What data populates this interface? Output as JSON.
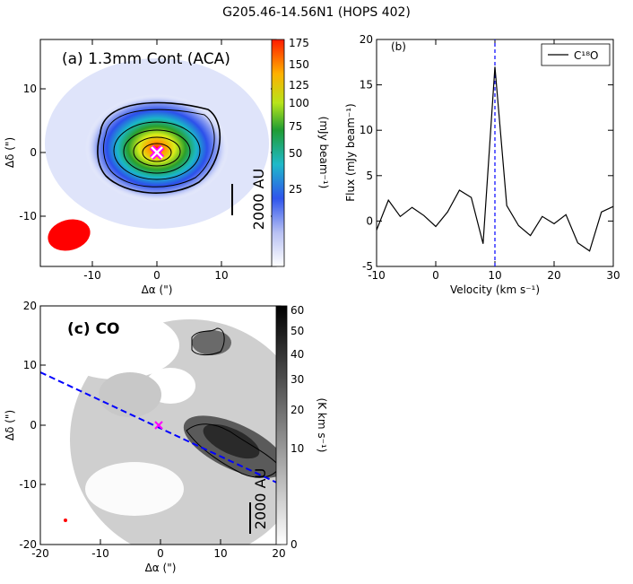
{
  "suptitle": "G205.46-14.56N1 (HOPS 402)",
  "panel_a": {
    "label": "(a) 1.3mm Cont (ACA)",
    "xlabel": "Δα (\")",
    "ylabel": "Δδ (\")",
    "cbar_label": "(mJy beam⁻¹)",
    "cbar_ticks": [
      "175",
      "150",
      "125",
      "100",
      "75",
      "50",
      "25"
    ],
    "scalebar": "2000 AU",
    "xticks": [
      "-10",
      "0",
      "10"
    ],
    "yticks": [
      "10",
      "0",
      "-10"
    ]
  },
  "panel_c": {
    "label": "(c) CO",
    "xlabel": "Δα (\")",
    "ylabel": "Δδ (\")",
    "cbar_label": "(K km s⁻¹)",
    "cbar_ticks": [
      "60",
      "50",
      "40",
      "30",
      "20",
      "10",
      "0"
    ],
    "scalebar": "2000 AU",
    "xticks": [
      "-20",
      "-10",
      "0",
      "10",
      "20"
    ],
    "yticks": [
      "20",
      "10",
      "0",
      "-10",
      "-20"
    ]
  },
  "colors": {
    "accent_blue": "#0000ff",
    "marker": "#ff00ff",
    "beam": "#ff0000"
  },
  "chart_data": {
    "type": "line",
    "title": "(b)",
    "xlabel": "Velocity  (km s⁻¹)",
    "ylabel": "Flux (mJy beam⁻¹)",
    "legend": "C¹⁸O",
    "legend_position": "top-right",
    "xlim": [
      -10,
      30
    ],
    "ylim": [
      -5,
      20
    ],
    "xticks": [
      -10,
      0,
      10,
      20,
      30
    ],
    "yticks": [
      -5,
      0,
      5,
      10,
      15,
      20
    ],
    "vline": 10,
    "series": [
      {
        "name": "C¹⁸O",
        "x": [
          -10,
          -8,
          -6,
          -4,
          -2,
          0,
          2,
          4,
          6,
          8,
          10,
          12,
          14,
          16,
          18,
          20,
          22,
          24,
          26,
          28,
          30
        ],
        "y": [
          -1,
          2.3,
          0.5,
          1.5,
          0.6,
          -0.6,
          1,
          3.4,
          2.6,
          -2.5,
          17,
          1.7,
          -0.5,
          -1.6,
          0.5,
          -0.3,
          0.7,
          -2.4,
          -3.3,
          1,
          1.6
        ]
      }
    ]
  }
}
